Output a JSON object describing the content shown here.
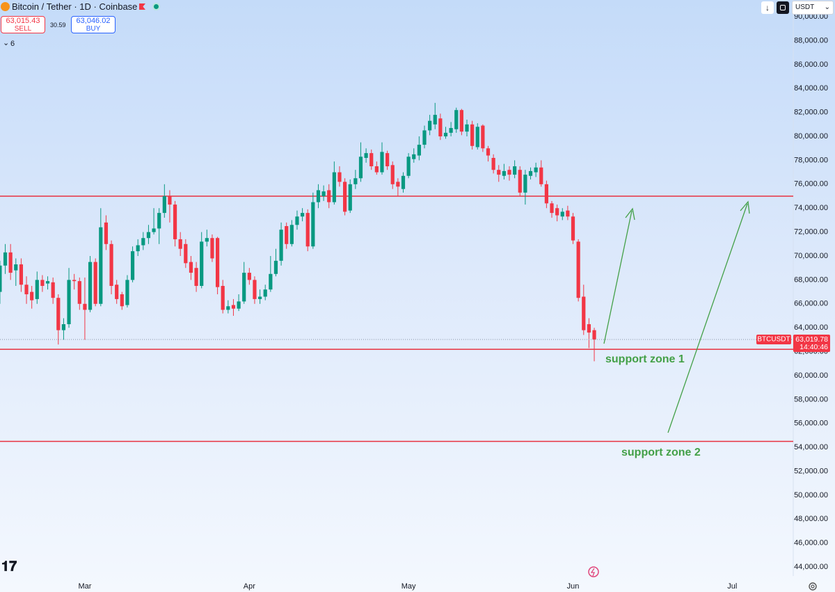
{
  "header": {
    "title": "Bitcoin / Tether · 1D · Coinbase",
    "sell_price": "63,015.43",
    "sell_label": "SELL",
    "spread": "30.59",
    "buy_price": "63,046.02",
    "buy_label": "BUY",
    "indicators": "6",
    "currency": "USDT"
  },
  "chart_data": {
    "type": "candlestick",
    "categories": [
      null,
      null,
      null,
      null,
      null,
      null,
      null,
      null,
      null,
      null,
      null,
      null,
      null,
      null,
      null,
      null,
      "Mar",
      null,
      null,
      null,
      null,
      null,
      null,
      null,
      null,
      null,
      null,
      null,
      null,
      null,
      null,
      null,
      null,
      null,
      null,
      null,
      null,
      null,
      null,
      null,
      null,
      null,
      null,
      null,
      null,
      null,
      null,
      "Apr",
      null,
      null,
      null,
      null,
      null,
      null,
      null,
      null,
      null,
      null,
      null,
      null,
      null,
      null,
      null,
      null,
      null,
      null,
      null,
      null,
      null,
      null,
      null,
      null,
      null,
      null,
      null,
      null,
      null,
      "May",
      null,
      null,
      null,
      null,
      null,
      null,
      null,
      null,
      null,
      null,
      null,
      null,
      null,
      null,
      null,
      null,
      null,
      null,
      null,
      null,
      null,
      null,
      null,
      null,
      null,
      null,
      null,
      null,
      null,
      null,
      "Jun",
      null,
      null,
      null,
      null,
      null,
      null,
      null,
      null,
      null,
      null,
      null,
      null,
      null,
      null,
      null,
      null,
      null,
      null,
      null,
      null,
      null,
      null,
      null,
      null,
      null,
      null,
      null,
      null,
      null,
      "Jul",
      null,
      null,
      null,
      null,
      null,
      null,
      null,
      null,
      null,
      null,
      null
    ],
    "series": [
      {
        "name": "BTCUSDT",
        "up_color": "#089981",
        "down_color": "#f23645",
        "open": [
          67000,
          69200,
          70300,
          68800,
          69300,
          67600,
          67000,
          66400,
          68000,
          67700,
          67800,
          66500,
          63800,
          64300,
          68000,
          67900,
          66000,
          65500,
          69500,
          66000,
          72800,
          71000,
          67600,
          66800,
          65900,
          68000,
          70400,
          70900,
          71500,
          72000,
          72300,
          73600,
          75000,
          74300,
          71400,
          71000,
          69500,
          69000,
          67500,
          71200,
          71500,
          71500,
          67500,
          65500,
          65900,
          65600,
          66200,
          68600,
          68000,
          66400,
          66600,
          67200,
          68500,
          69600,
          72500,
          71000,
          72600,
          73300,
          73600,
          70800,
          74500,
          75000,
          75500,
          74500,
          77000,
          76200,
          73800,
          76000,
          76500,
          78200,
          78600,
          77500,
          77000,
          78600,
          77600,
          76200,
          75600,
          76700,
          78100,
          78400,
          79300,
          80500,
          81000,
          81500,
          80000,
          80300,
          80600,
          82200,
          80400,
          81000,
          79100,
          80900,
          79000,
          78200,
          77200,
          76700,
          77200,
          76800,
          77200,
          75300,
          76700,
          77000,
          77400,
          76000,
          74400,
          74000,
          73300,
          73800,
          73300,
          71200,
          66600,
          64300,
          63800,
          null,
          null,
          null,
          null,
          null,
          null,
          null,
          null,
          null,
          null,
          null,
          null,
          null,
          null,
          null,
          null,
          null,
          null,
          null,
          null,
          null,
          null,
          null,
          null,
          null,
          null,
          null,
          null,
          null,
          null,
          null,
          null,
          null,
          null,
          null,
          null,
          null
        ],
        "high": [
          69600,
          71000,
          71000,
          69800,
          69800,
          68300,
          67500,
          68700,
          68400,
          68300,
          68200,
          66800,
          64800,
          69000,
          68500,
          68200,
          68200,
          70000,
          69800,
          74000,
          73400,
          71300,
          68000,
          67000,
          68400,
          70800,
          71400,
          72000,
          72600,
          74000,
          74000,
          76000,
          75500,
          74600,
          72000,
          71400,
          70000,
          69500,
          72000,
          72200,
          71800,
          71600,
          68000,
          66300,
          66400,
          66800,
          69500,
          69000,
          68300,
          67200,
          67600,
          70000,
          70600,
          72800,
          72800,
          73000,
          73800,
          74000,
          73900,
          75300,
          76000,
          75900,
          76000,
          77900,
          77500,
          76500,
          76400,
          77200,
          79500,
          79000,
          78900,
          77900,
          79500,
          78800,
          77900,
          76500,
          77000,
          78600,
          79000,
          80000,
          80900,
          81800,
          82800,
          81900,
          80800,
          81200,
          82400,
          82300,
          81400,
          81300,
          81100,
          81000,
          79200,
          78500,
          77600,
          77700,
          77500,
          78000,
          77500,
          77200,
          77400,
          77800,
          78000,
          76300,
          74600,
          74300,
          74000,
          74200,
          73600,
          71400,
          67600,
          64800,
          64000,
          null,
          null,
          null,
          null,
          null,
          null,
          null,
          null,
          null,
          null,
          null,
          null,
          null,
          null,
          null,
          null,
          null,
          null,
          null,
          null,
          null,
          null,
          null,
          null,
          null,
          null,
          null,
          null,
          null,
          null,
          null,
          null,
          null,
          null,
          null,
          null,
          null
        ],
        "low": [
          66000,
          68500,
          68000,
          67500,
          67000,
          66000,
          65600,
          66000,
          67000,
          67200,
          66000,
          62600,
          63000,
          64000,
          67200,
          65500,
          63000,
          65300,
          65800,
          65800,
          70500,
          66800,
          66000,
          65500,
          65700,
          67800,
          70000,
          70500,
          71000,
          71800,
          71000,
          73200,
          72800,
          70800,
          70000,
          69000,
          68000,
          67000,
          67300,
          70800,
          69500,
          66800,
          65200,
          65200,
          65000,
          65400,
          66000,
          67600,
          66000,
          66000,
          66300,
          67000,
          68300,
          69200,
          70600,
          70800,
          72200,
          72900,
          70400,
          70600,
          74000,
          74600,
          74000,
          74300,
          75800,
          73400,
          73600,
          75600,
          76200,
          77800,
          77200,
          76800,
          76800,
          77200,
          75600,
          75000,
          75300,
          76500,
          77800,
          78000,
          79000,
          80100,
          80600,
          79700,
          79800,
          80000,
          80300,
          80100,
          80000,
          78900,
          78900,
          78700,
          77900,
          76900,
          76200,
          76400,
          76300,
          76500,
          75000,
          74300,
          76400,
          76600,
          75800,
          74000,
          73200,
          72900,
          73000,
          73000,
          71000,
          66200,
          63400,
          62300,
          61200,
          null,
          null,
          null,
          null,
          null,
          null,
          null,
          null,
          null,
          null,
          null,
          null,
          null,
          null,
          null,
          null,
          null,
          null,
          null,
          null,
          null,
          null,
          null,
          null,
          null,
          null,
          null,
          null,
          null,
          null,
          null,
          null,
          null,
          null,
          null,
          null,
          null
        ],
        "close": [
          69200,
          70300,
          68600,
          69300,
          67600,
          66800,
          66300,
          68000,
          67500,
          67900,
          66500,
          63800,
          64300,
          68000,
          67900,
          66000,
          65500,
          69500,
          66000,
          72400,
          71000,
          67500,
          66400,
          65800,
          68000,
          70400,
          70900,
          71500,
          72000,
          72300,
          73600,
          75000,
          74300,
          71400,
          70600,
          69400,
          68600,
          67500,
          71200,
          71500,
          69800,
          67400,
          65500,
          65800,
          65600,
          66200,
          68600,
          68000,
          66400,
          66600,
          67200,
          68500,
          69600,
          72200,
          71000,
          72600,
          73300,
          73600,
          70800,
          74500,
          75500,
          75400,
          74500,
          77000,
          76200,
          73700,
          76000,
          76500,
          78300,
          78600,
          77500,
          77000,
          78700,
          77500,
          76000,
          75800,
          76700,
          78300,
          78500,
          79300,
          80500,
          81300,
          81800,
          80000,
          80300,
          80700,
          82200,
          80400,
          81000,
          79200,
          80800,
          79000,
          78400,
          77200,
          76800,
          77100,
          76800,
          77500,
          75300,
          76800,
          77100,
          77400,
          76000,
          74400,
          73600,
          73400,
          73700,
          73300,
          71300,
          66500,
          63800,
          63600,
          63019.78,
          null,
          null,
          null,
          null,
          null,
          null,
          null,
          null,
          null,
          null,
          null,
          null,
          null,
          null,
          null,
          null,
          null,
          null,
          null,
          null,
          null,
          null,
          null,
          null,
          null,
          null,
          null,
          null,
          null,
          null,
          null,
          null,
          null,
          null,
          null,
          null
        ]
      }
    ],
    "ylim": [
      43250,
      91400
    ],
    "yticks": [
      {
        "value": 44000,
        "label": "44,000.00"
      },
      {
        "value": 46000,
        "label": "46,000.00"
      },
      {
        "value": 48000,
        "label": "48,000.00"
      },
      {
        "value": 50000,
        "label": "50,000.00"
      },
      {
        "value": 52000,
        "label": "52,000.00"
      },
      {
        "value": 54000,
        "label": "54,000.00"
      },
      {
        "value": 56000,
        "label": "56,000.00"
      },
      {
        "value": 58000,
        "label": "58,000.00"
      },
      {
        "value": 60000,
        "label": "60,000.00"
      },
      {
        "value": 62000,
        "label": "62,000.00"
      },
      {
        "value": 64000,
        "label": "64,000.00"
      },
      {
        "value": 66000,
        "label": "66,000.00"
      },
      {
        "value": 68000,
        "label": "68,000.00"
      },
      {
        "value": 70000,
        "label": "70,000.00"
      },
      {
        "value": 72000,
        "label": "72,000.00"
      },
      {
        "value": 74000,
        "label": "74,000.00"
      },
      {
        "value": 76000,
        "label": "76,000.00"
      },
      {
        "value": 78000,
        "label": "78,000.00"
      },
      {
        "value": 80000,
        "label": "80,000.00"
      },
      {
        "value": 82000,
        "label": "82,000.00"
      },
      {
        "value": 84000,
        "label": "84,000.00"
      },
      {
        "value": 86000,
        "label": "86,000.00"
      },
      {
        "value": 88000,
        "label": "88,000.00"
      },
      {
        "value": 90000,
        "label": "90,000.00"
      }
    ],
    "levels": [
      {
        "value": 75000,
        "color": "#e8313f"
      },
      {
        "value": 62200,
        "color": "#e8313f"
      },
      {
        "value": 54500,
        "color": "#e8313f"
      }
    ],
    "annotations": [
      "support zone 1",
      "support zone 2"
    ],
    "last_price": {
      "value": 63019.78,
      "label": "63,019.78"
    },
    "countdown": "14:40:46"
  }
}
